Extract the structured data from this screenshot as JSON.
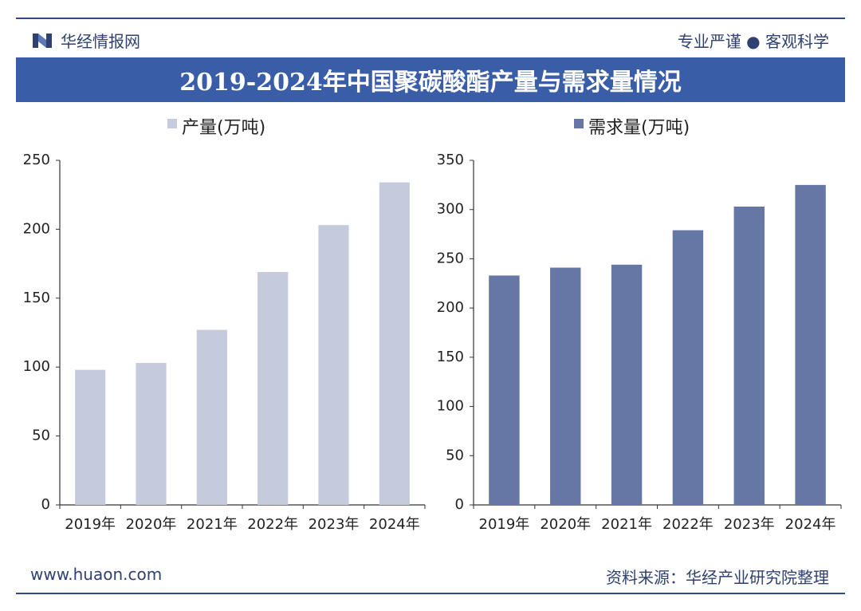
{
  "header": {
    "brand": "华经情报网",
    "slogan": "专业严谨 ● 客观科学",
    "title": "2019-2024年中国聚碳酸酯产量与需求量情况"
  },
  "footer": {
    "website": "www.huaon.com",
    "source": "资料来源：华经产业研究院整理"
  },
  "colors": {
    "brand_blue": "#3a5da8",
    "production_bar": "#c5cbdd",
    "demand_bar": "#6677a6"
  },
  "chart_data": [
    {
      "type": "bar",
      "categories": [
        "2019年",
        "2020年",
        "2021年",
        "2022年",
        "2023年",
        "2024年"
      ],
      "series": [
        {
          "name": "产量(万吨)",
          "values": [
            98,
            103,
            127,
            169,
            203,
            234
          ]
        }
      ],
      "ylim": [
        0,
        250
      ],
      "yticks": [
        0,
        50,
        100,
        150,
        200,
        250
      ],
      "legend": "top",
      "grid": false
    },
    {
      "type": "bar",
      "categories": [
        "2019年",
        "2020年",
        "2021年",
        "2022年",
        "2023年",
        "2024年"
      ],
      "series": [
        {
          "name": "需求量(万吨)",
          "values": [
            233,
            241,
            244,
            279,
            303,
            325
          ]
        }
      ],
      "ylim": [
        0,
        350
      ],
      "yticks": [
        0,
        50,
        100,
        150,
        200,
        250,
        300,
        350
      ],
      "legend": "top",
      "grid": false
    }
  ]
}
